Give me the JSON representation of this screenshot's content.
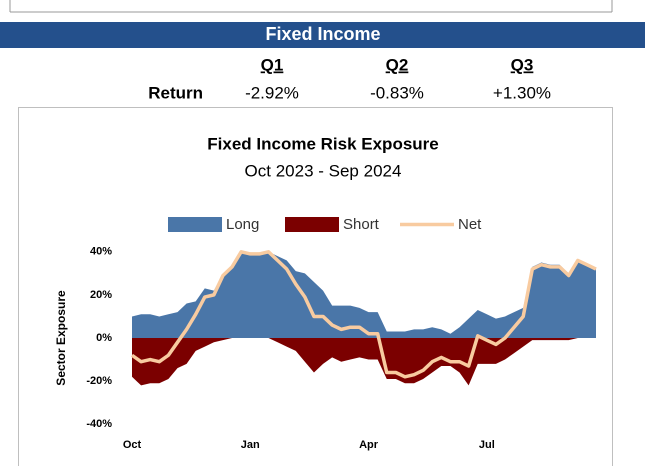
{
  "header": {
    "title": "Fixed Income"
  },
  "returns": {
    "columns": [
      "Q1",
      "Q2",
      "Q3"
    ],
    "row_label": "Return",
    "values": [
      "-2.92%",
      "-0.83%",
      "+1.30%"
    ]
  },
  "chart_data": {
    "type": "area",
    "title": "Fixed Income Risk Exposure",
    "subtitle": "Oct 2023 - Sep 2024",
    "y_axis_label": "Sector Exposure",
    "categories": [
      "Oct",
      null,
      null,
      null,
      null,
      null,
      null,
      null,
      null,
      null,
      null,
      null,
      null,
      "Jan",
      null,
      null,
      null,
      null,
      null,
      null,
      null,
      null,
      null,
      null,
      null,
      null,
      "Apr",
      null,
      null,
      null,
      null,
      null,
      null,
      null,
      null,
      null,
      null,
      null,
      null,
      "Jul",
      null,
      null,
      null,
      null,
      null,
      null,
      null,
      null,
      null,
      null,
      null,
      null
    ],
    "series": [
      {
        "name": "Long",
        "color": "#4a76a8",
        "style": "area",
        "values": [
          10,
          11,
          11,
          10,
          11,
          12,
          16,
          17,
          23,
          22,
          30,
          33,
          40,
          39,
          39,
          40,
          38,
          36,
          31,
          30,
          26,
          22,
          15,
          15,
          15,
          14,
          12,
          12,
          3,
          3,
          3,
          4,
          4,
          5,
          4,
          2,
          5,
          9,
          13,
          11,
          9,
          10,
          12,
          14,
          33,
          35,
          34,
          34,
          30,
          36,
          34,
          32
        ]
      },
      {
        "name": "Short",
        "color": "#7b0000",
        "style": "area",
        "values": [
          -18,
          -22,
          -21,
          -21,
          -19,
          -14,
          -12,
          -6,
          -4,
          -2,
          -1,
          0,
          0,
          0,
          0,
          0,
          -2,
          -4,
          -6,
          -11,
          -16,
          -12,
          -9,
          -11,
          -10,
          -9,
          -10,
          -10,
          -19,
          -19,
          -21,
          -21,
          -19,
          -16,
          -13,
          -13,
          -16,
          -22,
          -12,
          -12,
          -12,
          -10,
          -7,
          -4,
          -1,
          -1,
          -1,
          -1,
          -1,
          0,
          0,
          0
        ]
      },
      {
        "name": "Net",
        "color": "#f8cba0",
        "style": "line",
        "values": [
          -8,
          -11,
          -10,
          -11,
          -8,
          -2,
          4,
          11,
          19,
          20,
          29,
          33,
          40,
          39,
          39,
          40,
          36,
          32,
          25,
          19,
          10,
          10,
          6,
          4,
          5,
          5,
          2,
          2,
          -16,
          -16,
          -18,
          -17,
          -15,
          -11,
          -9,
          -11,
          -11,
          -13,
          1,
          -1,
          -3,
          0,
          5,
          10,
          32,
          34,
          33,
          33,
          29,
          36,
          34,
          32
        ]
      }
    ],
    "ylim": [
      -45,
      45
    ],
    "yticks": [
      {
        "value": 40,
        "label": "40%"
      },
      {
        "value": 20,
        "label": "20%"
      },
      {
        "value": 0,
        "label": "0%"
      },
      {
        "value": -20,
        "label": "-20%"
      },
      {
        "value": -40,
        "label": "-40%"
      }
    ],
    "grid": false,
    "legend": "top"
  }
}
